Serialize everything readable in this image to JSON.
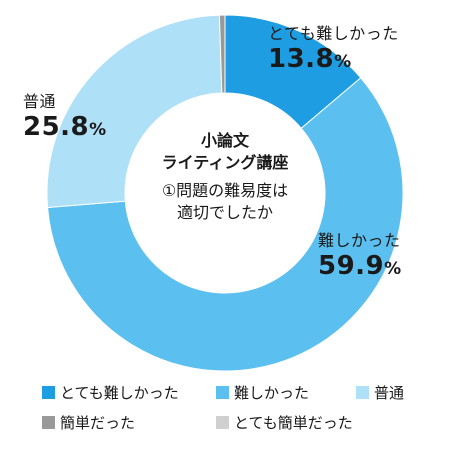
{
  "chart_data": {
    "type": "pie",
    "donut": true,
    "title_lines": [
      "小論文",
      "ライティング講座"
    ],
    "subtitle_lines": [
      "①問題の難易度は",
      "適切でしたか"
    ],
    "slices": [
      {
        "label": "とても難しかった",
        "value": 13.8,
        "display": "13.8",
        "color": "#1e9de2"
      },
      {
        "label": "難しかった",
        "value": 59.9,
        "display": "59.9",
        "color": "#5bc0ef"
      },
      {
        "label": "普通",
        "value": 25.8,
        "display": "25.8",
        "color": "#aee0f7"
      },
      {
        "label": "簡単だった",
        "value": 0.5,
        "display": "",
        "color": "#999999"
      },
      {
        "label": "とても簡単だった",
        "value": 0.0,
        "display": "",
        "color": "#d0d0d0"
      }
    ],
    "percent_suffix": "%",
    "legend_placement": "bottom"
  }
}
